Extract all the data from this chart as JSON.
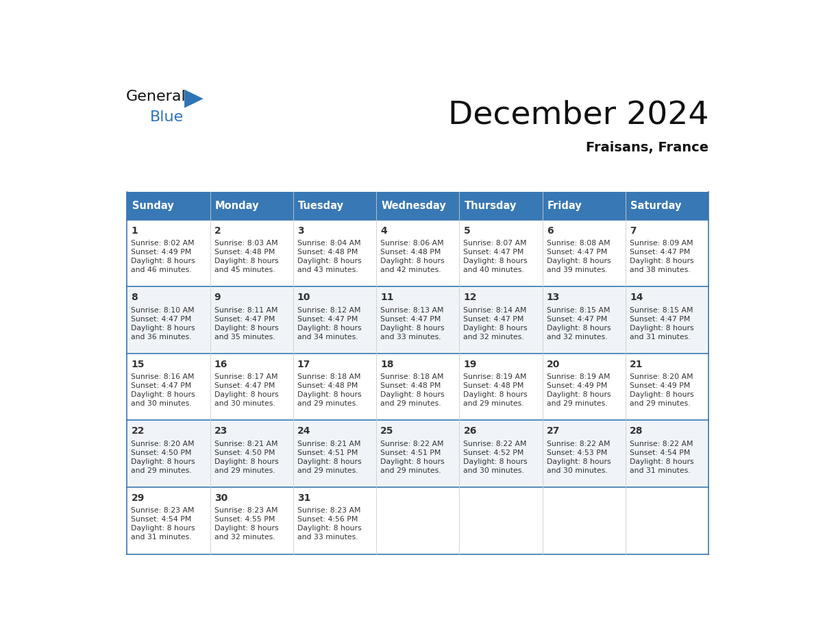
{
  "title": "December 2024",
  "subtitle": "Fraisans, France",
  "logo_text_general": "General",
  "logo_text_blue": "Blue",
  "header_color": "#3878b4",
  "header_text_color": "#ffffff",
  "cell_bg_even": "#ffffff",
  "cell_bg_odd": "#f0f4f8",
  "cell_border_color": "#3878b4",
  "grid_line_color": "#cccccc",
  "text_color": "#333333",
  "days_of_week": [
    "Sunday",
    "Monday",
    "Tuesday",
    "Wednesday",
    "Thursday",
    "Friday",
    "Saturday"
  ],
  "calendar": [
    [
      {
        "day": 1,
        "sunrise": "8:02 AM",
        "sunset": "4:49 PM",
        "daylight_hrs": 8,
        "daylight_min": 46
      },
      {
        "day": 2,
        "sunrise": "8:03 AM",
        "sunset": "4:48 PM",
        "daylight_hrs": 8,
        "daylight_min": 45
      },
      {
        "day": 3,
        "sunrise": "8:04 AM",
        "sunset": "4:48 PM",
        "daylight_hrs": 8,
        "daylight_min": 43
      },
      {
        "day": 4,
        "sunrise": "8:06 AM",
        "sunset": "4:48 PM",
        "daylight_hrs": 8,
        "daylight_min": 42
      },
      {
        "day": 5,
        "sunrise": "8:07 AM",
        "sunset": "4:47 PM",
        "daylight_hrs": 8,
        "daylight_min": 40
      },
      {
        "day": 6,
        "sunrise": "8:08 AM",
        "sunset": "4:47 PM",
        "daylight_hrs": 8,
        "daylight_min": 39
      },
      {
        "day": 7,
        "sunrise": "8:09 AM",
        "sunset": "4:47 PM",
        "daylight_hrs": 8,
        "daylight_min": 38
      }
    ],
    [
      {
        "day": 8,
        "sunrise": "8:10 AM",
        "sunset": "4:47 PM",
        "daylight_hrs": 8,
        "daylight_min": 36
      },
      {
        "day": 9,
        "sunrise": "8:11 AM",
        "sunset": "4:47 PM",
        "daylight_hrs": 8,
        "daylight_min": 35
      },
      {
        "day": 10,
        "sunrise": "8:12 AM",
        "sunset": "4:47 PM",
        "daylight_hrs": 8,
        "daylight_min": 34
      },
      {
        "day": 11,
        "sunrise": "8:13 AM",
        "sunset": "4:47 PM",
        "daylight_hrs": 8,
        "daylight_min": 33
      },
      {
        "day": 12,
        "sunrise": "8:14 AM",
        "sunset": "4:47 PM",
        "daylight_hrs": 8,
        "daylight_min": 32
      },
      {
        "day": 13,
        "sunrise": "8:15 AM",
        "sunset": "4:47 PM",
        "daylight_hrs": 8,
        "daylight_min": 32
      },
      {
        "day": 14,
        "sunrise": "8:15 AM",
        "sunset": "4:47 PM",
        "daylight_hrs": 8,
        "daylight_min": 31
      }
    ],
    [
      {
        "day": 15,
        "sunrise": "8:16 AM",
        "sunset": "4:47 PM",
        "daylight_hrs": 8,
        "daylight_min": 30
      },
      {
        "day": 16,
        "sunrise": "8:17 AM",
        "sunset": "4:47 PM",
        "daylight_hrs": 8,
        "daylight_min": 30
      },
      {
        "day": 17,
        "sunrise": "8:18 AM",
        "sunset": "4:48 PM",
        "daylight_hrs": 8,
        "daylight_min": 29
      },
      {
        "day": 18,
        "sunrise": "8:18 AM",
        "sunset": "4:48 PM",
        "daylight_hrs": 8,
        "daylight_min": 29
      },
      {
        "day": 19,
        "sunrise": "8:19 AM",
        "sunset": "4:48 PM",
        "daylight_hrs": 8,
        "daylight_min": 29
      },
      {
        "day": 20,
        "sunrise": "8:19 AM",
        "sunset": "4:49 PM",
        "daylight_hrs": 8,
        "daylight_min": 29
      },
      {
        "day": 21,
        "sunrise": "8:20 AM",
        "sunset": "4:49 PM",
        "daylight_hrs": 8,
        "daylight_min": 29
      }
    ],
    [
      {
        "day": 22,
        "sunrise": "8:20 AM",
        "sunset": "4:50 PM",
        "daylight_hrs": 8,
        "daylight_min": 29
      },
      {
        "day": 23,
        "sunrise": "8:21 AM",
        "sunset": "4:50 PM",
        "daylight_hrs": 8,
        "daylight_min": 29
      },
      {
        "day": 24,
        "sunrise": "8:21 AM",
        "sunset": "4:51 PM",
        "daylight_hrs": 8,
        "daylight_min": 29
      },
      {
        "day": 25,
        "sunrise": "8:22 AM",
        "sunset": "4:51 PM",
        "daylight_hrs": 8,
        "daylight_min": 29
      },
      {
        "day": 26,
        "sunrise": "8:22 AM",
        "sunset": "4:52 PM",
        "daylight_hrs": 8,
        "daylight_min": 30
      },
      {
        "day": 27,
        "sunrise": "8:22 AM",
        "sunset": "4:53 PM",
        "daylight_hrs": 8,
        "daylight_min": 30
      },
      {
        "day": 28,
        "sunrise": "8:22 AM",
        "sunset": "4:54 PM",
        "daylight_hrs": 8,
        "daylight_min": 31
      }
    ],
    [
      {
        "day": 29,
        "sunrise": "8:23 AM",
        "sunset": "4:54 PM",
        "daylight_hrs": 8,
        "daylight_min": 31
      },
      {
        "day": 30,
        "sunrise": "8:23 AM",
        "sunset": "4:55 PM",
        "daylight_hrs": 8,
        "daylight_min": 32
      },
      {
        "day": 31,
        "sunrise": "8:23 AM",
        "sunset": "4:56 PM",
        "daylight_hrs": 8,
        "daylight_min": 33
      },
      null,
      null,
      null,
      null
    ]
  ]
}
